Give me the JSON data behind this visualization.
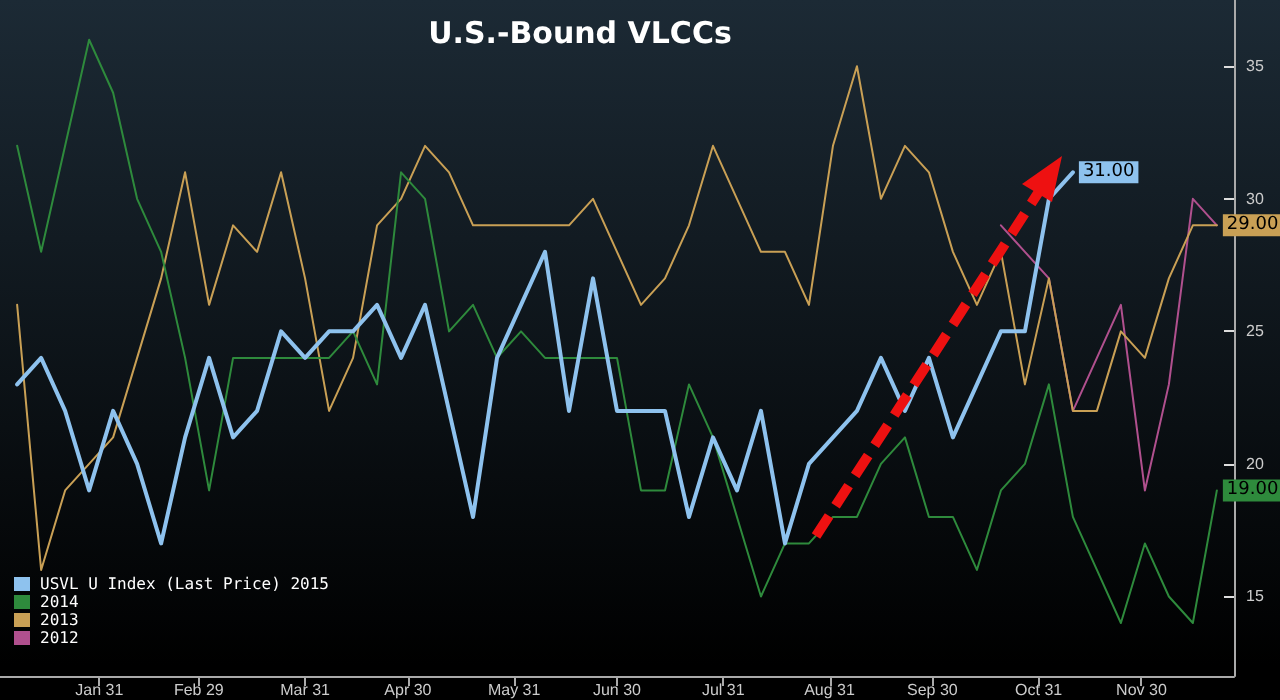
{
  "chart_data": {
    "type": "line",
    "title": "U.S.-Bound VLCCs",
    "x": [
      "--01-07",
      "--01-14",
      "--01-21",
      "--01-28",
      "--02-04",
      "--02-11",
      "--02-18",
      "--02-25",
      "--03-03",
      "--03-10",
      "--03-17",
      "--03-24",
      "--03-31",
      "--04-07",
      "--04-14",
      "--04-21",
      "--04-28",
      "--05-05",
      "--05-12",
      "--05-19",
      "--05-26",
      "--06-02",
      "--06-09",
      "--06-16",
      "--06-23",
      "--06-30",
      "--07-07",
      "--07-14",
      "--07-21",
      "--07-28",
      "--08-04",
      "--08-11",
      "--08-18",
      "--08-25",
      "--09-01",
      "--09-08",
      "--09-15",
      "--09-22",
      "--09-29",
      "--10-06",
      "--10-13",
      "--10-20",
      "--10-27",
      "--11-03",
      "--11-10",
      "--11-17",
      "--11-24",
      "--12-01",
      "--12-08",
      "--12-15",
      "--12-22"
    ],
    "series": [
      {
        "name": "USVL U Index (Last Price) 2015",
        "color": "#8ec2ee",
        "values": [
          23,
          24,
          22,
          19,
          22,
          20,
          17,
          21,
          24,
          21,
          22,
          25,
          24,
          25,
          25,
          26,
          24,
          26,
          22,
          18,
          24,
          26,
          28,
          22,
          27,
          22,
          22,
          22,
          18,
          21,
          19,
          22,
          17,
          20,
          21,
          22,
          24,
          22,
          24,
          21,
          23,
          25,
          25,
          30,
          31,
          null,
          null,
          null,
          null,
          null,
          null
        ],
        "value_labels": [
          null,
          null,
          null,
          null,
          null,
          null,
          null,
          null,
          null,
          null,
          null,
          null,
          null,
          null,
          null,
          null,
          null,
          null,
          null,
          null,
          null,
          null,
          null,
          null,
          null,
          null,
          null,
          null,
          null,
          null,
          null,
          null,
          null,
          null,
          null,
          null,
          null,
          null,
          null,
          null,
          null,
          null,
          null,
          null,
          "31.00",
          null,
          null,
          null,
          null,
          null,
          null
        ]
      },
      {
        "name": "2014",
        "color": "#2e8a3c",
        "values": [
          32,
          28,
          32,
          36,
          34,
          30,
          28,
          24,
          19,
          24,
          24,
          24,
          24,
          24,
          25,
          23,
          31,
          30,
          25,
          26,
          24,
          25,
          24,
          24,
          24,
          24,
          19,
          19,
          23,
          21,
          18,
          15,
          17,
          17,
          18,
          18,
          20,
          21,
          18,
          18,
          16,
          19,
          20,
          23,
          18,
          16,
          14,
          17,
          15,
          14,
          19
        ],
        "value_labels": [
          null,
          null,
          null,
          null,
          null,
          null,
          null,
          null,
          null,
          null,
          null,
          null,
          null,
          null,
          null,
          null,
          null,
          null,
          null,
          null,
          null,
          null,
          null,
          null,
          null,
          null,
          null,
          null,
          null,
          null,
          null,
          null,
          null,
          null,
          null,
          null,
          null,
          null,
          null,
          null,
          null,
          null,
          null,
          null,
          null,
          null,
          null,
          null,
          null,
          null,
          "19.00"
        ]
      },
      {
        "name": "2013",
        "color": "#c9a055",
        "values": [
          26,
          16,
          19,
          20,
          21,
          24,
          27,
          31,
          26,
          29,
          28,
          31,
          27,
          22,
          24,
          29,
          30,
          32,
          31,
          29,
          29,
          29,
          29,
          29,
          30,
          28,
          26,
          27,
          29,
          32,
          30,
          28,
          28,
          26,
          32,
          35,
          30,
          32,
          31,
          28,
          26,
          28,
          23,
          27,
          22,
          22,
          25,
          24,
          27,
          29,
          29
        ],
        "value_labels": [
          null,
          null,
          null,
          null,
          null,
          null,
          null,
          null,
          null,
          null,
          null,
          null,
          null,
          null,
          null,
          null,
          null,
          null,
          null,
          null,
          null,
          null,
          null,
          null,
          null,
          null,
          null,
          null,
          null,
          null,
          null,
          null,
          null,
          null,
          null,
          null,
          null,
          null,
          null,
          null,
          null,
          null,
          null,
          null,
          null,
          null,
          null,
          null,
          null,
          null,
          "29.00"
        ]
      },
      {
        "name": "2012",
        "color": "#b0508e",
        "values": [
          null,
          null,
          null,
          null,
          null,
          null,
          null,
          null,
          null,
          null,
          null,
          null,
          null,
          null,
          null,
          null,
          null,
          null,
          null,
          null,
          null,
          null,
          null,
          null,
          null,
          null,
          null,
          null,
          null,
          null,
          null,
          null,
          null,
          null,
          null,
          null,
          null,
          null,
          null,
          null,
          null,
          29,
          28,
          27,
          22,
          24,
          26,
          19,
          23,
          30,
          29
        ]
      }
    ],
    "xlim": [
      "--01-02",
      "--12-27"
    ],
    "xticks": [
      {
        "value": "--01-31",
        "label": "Jan 31"
      },
      {
        "value": "--02-29",
        "label": "Feb 29"
      },
      {
        "value": "--03-31",
        "label": "Mar 31"
      },
      {
        "value": "--04-30",
        "label": "Apr 30"
      },
      {
        "value": "--05-31",
        "label": "May 31"
      },
      {
        "value": "--06-30",
        "label": "Jun 30"
      },
      {
        "value": "--07-31",
        "label": "Jul 31"
      },
      {
        "value": "--08-31",
        "label": "Aug 31"
      },
      {
        "value": "--09-30",
        "label": "Sep 30"
      },
      {
        "value": "--10-31",
        "label": "Oct 31"
      },
      {
        "value": "--11-30",
        "label": "Nov 30"
      }
    ],
    "ylim": [
      12,
      37.5
    ],
    "yticks": [
      15,
      20,
      25,
      30,
      35
    ],
    "grid": false,
    "legend": "bottom left",
    "marker": "none",
    "line_style": "solid"
  }
}
